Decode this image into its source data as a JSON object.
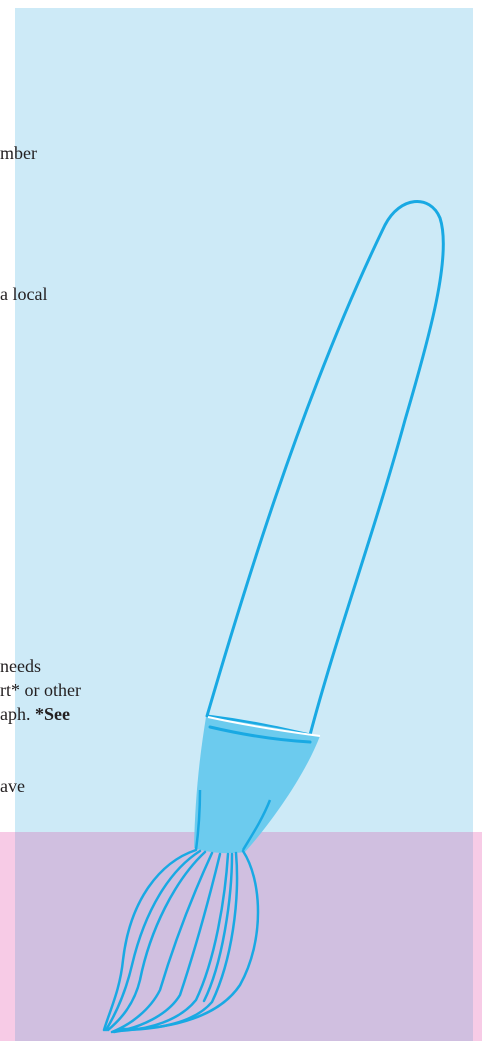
{
  "text_fragments": {
    "line1": "mber",
    "line2": "a local",
    "line3": "needs",
    "line4": "rt* or other",
    "line5_normal": "aph. ",
    "line5_bold": "*See",
    "line6": "ave"
  },
  "colors": {
    "panel_blue": "#cdeaf7",
    "panel_pink": "#f7cbe6",
    "brush_stroke": "#19a9e3",
    "brush_ferrule": "#6ccbee",
    "text": "#231f20"
  },
  "illustration": {
    "icon": "paintbrush-icon"
  }
}
